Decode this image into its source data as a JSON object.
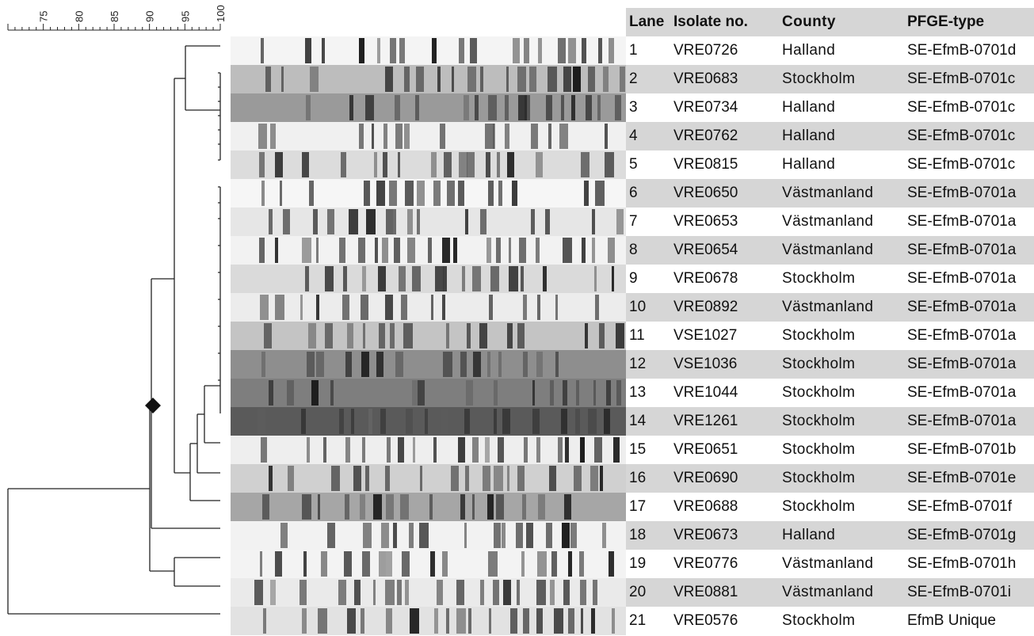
{
  "scale": {
    "ticks": [
      "75",
      "80",
      "85",
      "90",
      "95",
      "100"
    ]
  },
  "table": {
    "headers": {
      "lane": "Lane",
      "isolate": "Isolate no.",
      "county": "County",
      "pfge": "PFGE-type"
    },
    "rows": [
      {
        "lane": "1",
        "isolate": "VRE0726",
        "county": "Halland",
        "pfge": "SE-EfmB-0701d"
      },
      {
        "lane": "2",
        "isolate": "VRE0683",
        "county": "Stockholm",
        "pfge": "SE-EfmB-0701c"
      },
      {
        "lane": "3",
        "isolate": "VRE0734",
        "county": "Halland",
        "pfge": "SE-EfmB-0701c"
      },
      {
        "lane": "4",
        "isolate": "VRE0762",
        "county": "Halland",
        "pfge": "SE-EfmB-0701c"
      },
      {
        "lane": "5",
        "isolate": "VRE0815",
        "county": "Halland",
        "pfge": "SE-EfmB-0701c"
      },
      {
        "lane": "6",
        "isolate": "VRE0650",
        "county": "Västmanland",
        "pfge": "SE-EfmB-0701a"
      },
      {
        "lane": "7",
        "isolate": "VRE0653",
        "county": "Västmanland",
        "pfge": "SE-EfmB-0701a"
      },
      {
        "lane": "8",
        "isolate": "VRE0654",
        "county": "Västmanland",
        "pfge": "SE-EfmB-0701a"
      },
      {
        "lane": "9",
        "isolate": "VRE0678",
        "county": "Stockholm",
        "pfge": "SE-EfmB-0701a"
      },
      {
        "lane": "10",
        "isolate": "VRE0892",
        "county": "Västmanland",
        "pfge": "SE-EfmB-0701a"
      },
      {
        "lane": "11",
        "isolate": "VSE1027",
        "county": "Stockholm",
        "pfge": "SE-EfmB-0701a"
      },
      {
        "lane": "12",
        "isolate": "VSE1036",
        "county": "Stockholm",
        "pfge": "SE-EfmB-0701a"
      },
      {
        "lane": "13",
        "isolate": "VRE1044",
        "county": "Stockholm",
        "pfge": "SE-EfmB-0701a"
      },
      {
        "lane": "14",
        "isolate": "VRE1261",
        "county": "Stockholm",
        "pfge": "SE-EfmB-0701a"
      },
      {
        "lane": "15",
        "isolate": "VRE0651",
        "county": "Stockholm",
        "pfge": "SE-EfmB-0701b"
      },
      {
        "lane": "16",
        "isolate": "VRE0690",
        "county": "Stockholm",
        "pfge": "SE-EfmB-0701e"
      },
      {
        "lane": "17",
        "isolate": "VRE0688",
        "county": "Stockholm",
        "pfge": "SE-EfmB-0701f"
      },
      {
        "lane": "18",
        "isolate": "VRE0673",
        "county": "Halland",
        "pfge": "SE-EfmB-0701g"
      },
      {
        "lane": "19",
        "isolate": "VRE0776",
        "county": "Västmanland",
        "pfge": "SE-EfmB-0701h"
      },
      {
        "lane": "20",
        "isolate": "VRE0881",
        "county": "Västmanland",
        "pfge": "SE-EfmB-0701i"
      },
      {
        "lane": "21",
        "isolate": "VRE0576",
        "county": "Stockholm",
        "pfge": "EfmB Unique"
      }
    ]
  }
}
